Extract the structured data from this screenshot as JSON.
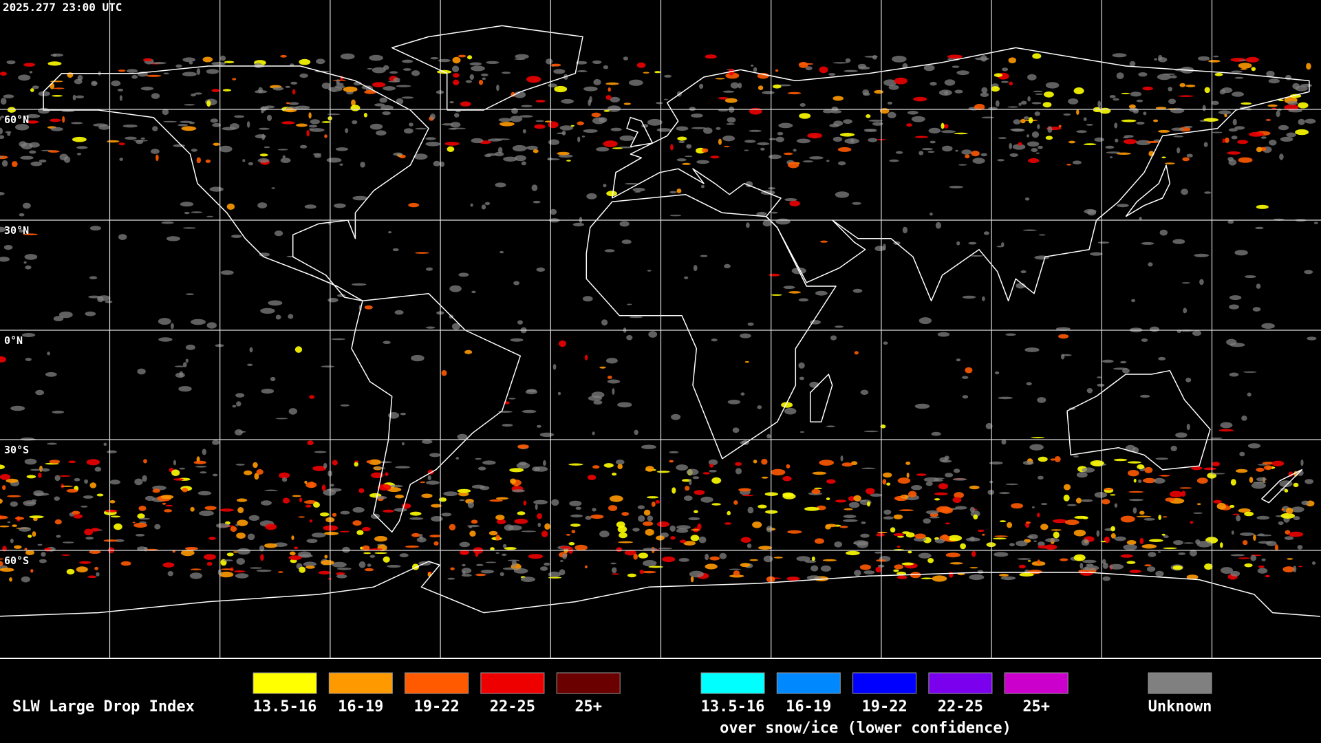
{
  "timestamp": "2025.277 23:00 UTC",
  "latitude_labels": [
    "60°N",
    "30°N",
    "0°N",
    "30°S",
    "60°S"
  ],
  "legend": {
    "title": "SLW Large Drop Index",
    "liquid": [
      {
        "label": "13.5-16",
        "color": "#ffff00"
      },
      {
        "label": "16-19",
        "color": "#ff9900"
      },
      {
        "label": "19-22",
        "color": "#ff5a00"
      },
      {
        "label": "22-25",
        "color": "#ee0000"
      },
      {
        "label": "25+",
        "color": "#6a0000"
      }
    ],
    "snow_ice": {
      "items": [
        {
          "label": "13.5-16",
          "color": "#00ffff"
        },
        {
          "label": "16-19",
          "color": "#0088ff"
        },
        {
          "label": "19-22",
          "color": "#0000ff"
        },
        {
          "label": "22-25",
          "color": "#7a00ee"
        },
        {
          "label": "25+",
          "color": "#cc00cc"
        }
      ],
      "caption": "over snow/ice (lower confidence)"
    },
    "unknown": {
      "label": "Unknown",
      "color": "#808080"
    }
  }
}
